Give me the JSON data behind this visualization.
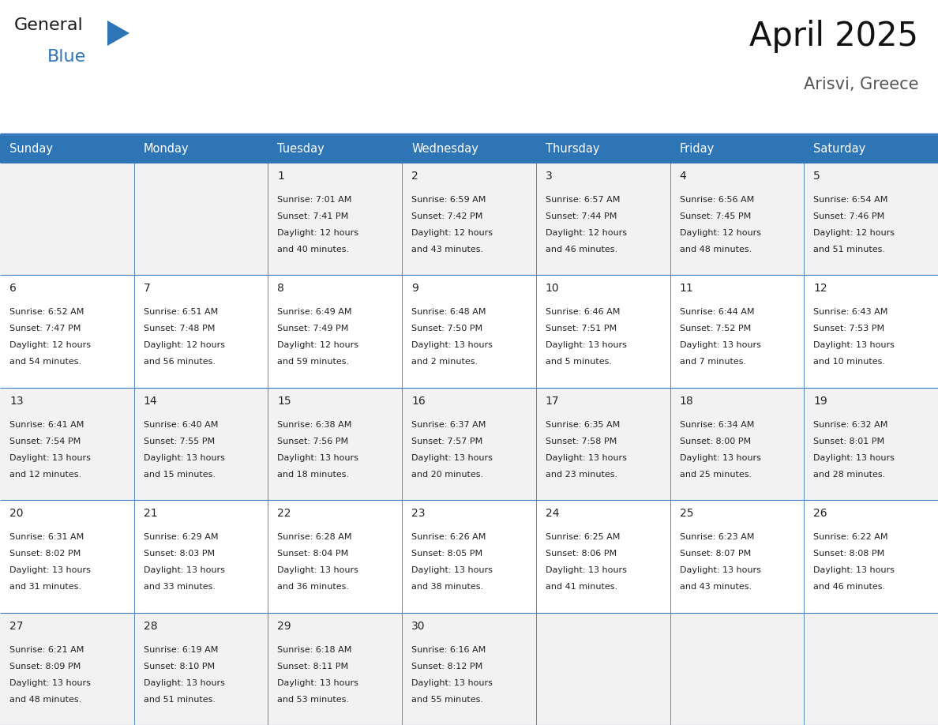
{
  "title": "April 2025",
  "subtitle": "Arisvi, Greece",
  "header_bg": "#2E75B6",
  "header_text_color": "#FFFFFF",
  "cell_bg_odd": "#F2F2F2",
  "cell_bg_even": "#FFFFFF",
  "day_names": [
    "Sunday",
    "Monday",
    "Tuesday",
    "Wednesday",
    "Thursday",
    "Friday",
    "Saturday"
  ],
  "days": [
    {
      "day": 1,
      "col": 2,
      "row": 0,
      "sunrise": "7:01 AM",
      "sunset": "7:41 PM",
      "daylight": "12 hours and 40 minutes."
    },
    {
      "day": 2,
      "col": 3,
      "row": 0,
      "sunrise": "6:59 AM",
      "sunset": "7:42 PM",
      "daylight": "12 hours and 43 minutes."
    },
    {
      "day": 3,
      "col": 4,
      "row": 0,
      "sunrise": "6:57 AM",
      "sunset": "7:44 PM",
      "daylight": "12 hours and 46 minutes."
    },
    {
      "day": 4,
      "col": 5,
      "row": 0,
      "sunrise": "6:56 AM",
      "sunset": "7:45 PM",
      "daylight": "12 hours and 48 minutes."
    },
    {
      "day": 5,
      "col": 6,
      "row": 0,
      "sunrise": "6:54 AM",
      "sunset": "7:46 PM",
      "daylight": "12 hours and 51 minutes."
    },
    {
      "day": 6,
      "col": 0,
      "row": 1,
      "sunrise": "6:52 AM",
      "sunset": "7:47 PM",
      "daylight": "12 hours and 54 minutes."
    },
    {
      "day": 7,
      "col": 1,
      "row": 1,
      "sunrise": "6:51 AM",
      "sunset": "7:48 PM",
      "daylight": "12 hours and 56 minutes."
    },
    {
      "day": 8,
      "col": 2,
      "row": 1,
      "sunrise": "6:49 AM",
      "sunset": "7:49 PM",
      "daylight": "12 hours and 59 minutes."
    },
    {
      "day": 9,
      "col": 3,
      "row": 1,
      "sunrise": "6:48 AM",
      "sunset": "7:50 PM",
      "daylight": "13 hours and 2 minutes."
    },
    {
      "day": 10,
      "col": 4,
      "row": 1,
      "sunrise": "6:46 AM",
      "sunset": "7:51 PM",
      "daylight": "13 hours and 5 minutes."
    },
    {
      "day": 11,
      "col": 5,
      "row": 1,
      "sunrise": "6:44 AM",
      "sunset": "7:52 PM",
      "daylight": "13 hours and 7 minutes."
    },
    {
      "day": 12,
      "col": 6,
      "row": 1,
      "sunrise": "6:43 AM",
      "sunset": "7:53 PM",
      "daylight": "13 hours and 10 minutes."
    },
    {
      "day": 13,
      "col": 0,
      "row": 2,
      "sunrise": "6:41 AM",
      "sunset": "7:54 PM",
      "daylight": "13 hours and 12 minutes."
    },
    {
      "day": 14,
      "col": 1,
      "row": 2,
      "sunrise": "6:40 AM",
      "sunset": "7:55 PM",
      "daylight": "13 hours and 15 minutes."
    },
    {
      "day": 15,
      "col": 2,
      "row": 2,
      "sunrise": "6:38 AM",
      "sunset": "7:56 PM",
      "daylight": "13 hours and 18 minutes."
    },
    {
      "day": 16,
      "col": 3,
      "row": 2,
      "sunrise": "6:37 AM",
      "sunset": "7:57 PM",
      "daylight": "13 hours and 20 minutes."
    },
    {
      "day": 17,
      "col": 4,
      "row": 2,
      "sunrise": "6:35 AM",
      "sunset": "7:58 PM",
      "daylight": "13 hours and 23 minutes."
    },
    {
      "day": 18,
      "col": 5,
      "row": 2,
      "sunrise": "6:34 AM",
      "sunset": "8:00 PM",
      "daylight": "13 hours and 25 minutes."
    },
    {
      "day": 19,
      "col": 6,
      "row": 2,
      "sunrise": "6:32 AM",
      "sunset": "8:01 PM",
      "daylight": "13 hours and 28 minutes."
    },
    {
      "day": 20,
      "col": 0,
      "row": 3,
      "sunrise": "6:31 AM",
      "sunset": "8:02 PM",
      "daylight": "13 hours and 31 minutes."
    },
    {
      "day": 21,
      "col": 1,
      "row": 3,
      "sunrise": "6:29 AM",
      "sunset": "8:03 PM",
      "daylight": "13 hours and 33 minutes."
    },
    {
      "day": 22,
      "col": 2,
      "row": 3,
      "sunrise": "6:28 AM",
      "sunset": "8:04 PM",
      "daylight": "13 hours and 36 minutes."
    },
    {
      "day": 23,
      "col": 3,
      "row": 3,
      "sunrise": "6:26 AM",
      "sunset": "8:05 PM",
      "daylight": "13 hours and 38 minutes."
    },
    {
      "day": 24,
      "col": 4,
      "row": 3,
      "sunrise": "6:25 AM",
      "sunset": "8:06 PM",
      "daylight": "13 hours and 41 minutes."
    },
    {
      "day": 25,
      "col": 5,
      "row": 3,
      "sunrise": "6:23 AM",
      "sunset": "8:07 PM",
      "daylight": "13 hours and 43 minutes."
    },
    {
      "day": 26,
      "col": 6,
      "row": 3,
      "sunrise": "6:22 AM",
      "sunset": "8:08 PM",
      "daylight": "13 hours and 46 minutes."
    },
    {
      "day": 27,
      "col": 0,
      "row": 4,
      "sunrise": "6:21 AM",
      "sunset": "8:09 PM",
      "daylight": "13 hours and 48 minutes."
    },
    {
      "day": 28,
      "col": 1,
      "row": 4,
      "sunrise": "6:19 AM",
      "sunset": "8:10 PM",
      "daylight": "13 hours and 51 minutes."
    },
    {
      "day": 29,
      "col": 2,
      "row": 4,
      "sunrise": "6:18 AM",
      "sunset": "8:11 PM",
      "daylight": "13 hours and 53 minutes."
    },
    {
      "day": 30,
      "col": 3,
      "row": 4,
      "sunrise": "6:16 AM",
      "sunset": "8:12 PM",
      "daylight": "13 hours and 55 minutes."
    }
  ],
  "num_rows": 5,
  "num_cols": 7,
  "line_color": "#3A7BBF",
  "text_color": "#222222",
  "logo_black": "#1a1a1a",
  "logo_blue": "#2E75B6"
}
